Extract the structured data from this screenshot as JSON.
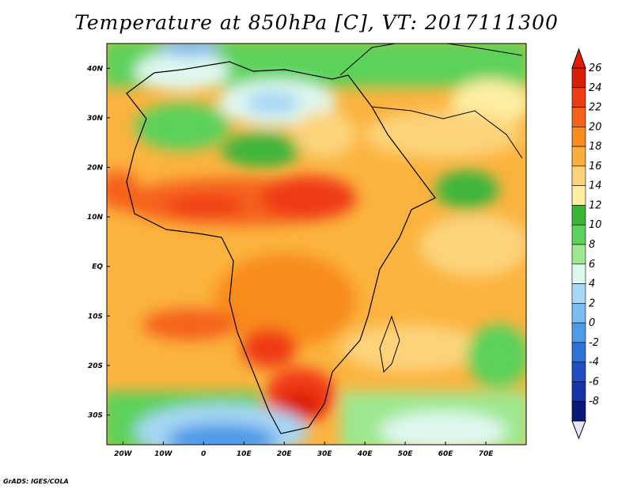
{
  "title": "Temperature at 850hPa [C], VT: 2017111300",
  "credit": "GrADS: IGES/COLA",
  "map": {
    "lon_range": [
      -24,
      80
    ],
    "lat_range": [
      -36,
      45
    ],
    "lon_ticks": [
      {
        "lon": -20,
        "label": "20W"
      },
      {
        "lon": -10,
        "label": "10W"
      },
      {
        "lon": 0,
        "label": "0"
      },
      {
        "lon": 10,
        "label": "10E"
      },
      {
        "lon": 20,
        "label": "20E"
      },
      {
        "lon": 30,
        "label": "30E"
      },
      {
        "lon": 40,
        "label": "40E"
      },
      {
        "lon": 50,
        "label": "50E"
      },
      {
        "lon": 60,
        "label": "60E"
      },
      {
        "lon": 70,
        "label": "70E"
      }
    ],
    "lat_ticks": [
      {
        "lat": 40,
        "label": "40N"
      },
      {
        "lat": 30,
        "label": "30N"
      },
      {
        "lat": 20,
        "label": "20N"
      },
      {
        "lat": 10,
        "label": "10N"
      },
      {
        "lat": 0,
        "label": "EQ"
      },
      {
        "lat": -10,
        "label": "10S"
      },
      {
        "lat": -20,
        "label": "20S"
      },
      {
        "lat": -30,
        "label": "30S"
      }
    ]
  },
  "colorbar": {
    "levels": [
      "26",
      "24",
      "22",
      "20",
      "18",
      "16",
      "14",
      "12",
      "10",
      "8",
      "6",
      "4",
      "2",
      "0",
      "-2",
      "-4",
      "-6",
      "-8"
    ],
    "colors": [
      "#d81e05",
      "#ef3b13",
      "#f5621e",
      "#f88c1c",
      "#fbae3f",
      "#fcd37a",
      "#fdeea2",
      "#3cb53b",
      "#5cd25a",
      "#9ee88f",
      "#dff8ef",
      "#a6d7f5",
      "#7cbcf0",
      "#4e9ae6",
      "#2d72d6",
      "#1f4fc1",
      "#1535a6",
      "#0c1878"
    ],
    "top_color": "#e51a00",
    "bottom_color": "#e6e6fa"
  }
}
